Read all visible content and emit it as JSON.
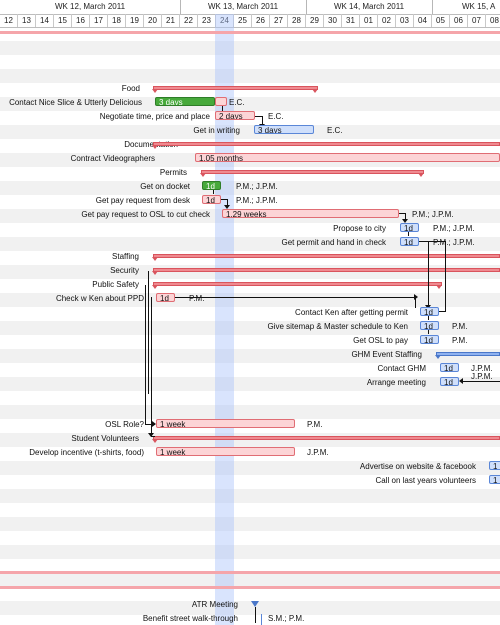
{
  "header": {
    "weeks": [
      "WK 12, March 2011",
      "WK 13, March 2011",
      "WK 14, March 2011",
      "WK 15, A"
    ],
    "days": [
      "12",
      "13",
      "14",
      "15",
      "16",
      "17",
      "18",
      "19",
      "20",
      "21",
      "22",
      "23",
      "24",
      "25",
      "26",
      "27",
      "28",
      "29",
      "30",
      "31",
      "01",
      "02",
      "03",
      "04",
      "05",
      "06",
      "07",
      "08"
    ]
  },
  "colors": {
    "task_pink": "#fcd4d6",
    "task_blue": "#cfdffb",
    "task_green": "#47a93b",
    "summary": "#ef8a90",
    "today": "#aac3fa"
  },
  "tasks": [
    {
      "label": "Food",
      "duration": "",
      "resource": ""
    },
    {
      "label": "Contact Nice Slice & Utterly Delicious",
      "duration": "3 days",
      "resource": "E.C."
    },
    {
      "label": "Negotiate time, price and place",
      "duration": "2 days",
      "resource": "E.C."
    },
    {
      "label": "Get in writing",
      "duration": "3 days",
      "resource": "E.C."
    },
    {
      "label": "Documentation",
      "duration": "",
      "resource": ""
    },
    {
      "label": "Contract Videographers",
      "duration": "1.05 months",
      "resource": ""
    },
    {
      "label": "Permits",
      "duration": "",
      "resource": ""
    },
    {
      "label": "Get on docket",
      "duration": "1d",
      "resource": "P.M.; J.P.M."
    },
    {
      "label": "Get pay request from desk",
      "duration": "1d",
      "resource": "P.M.; J.P.M."
    },
    {
      "label": "Get pay request to OSL to cut check",
      "duration": "1.29 weeks",
      "resource": "P.M.; J.P.M."
    },
    {
      "label": "Propose to city",
      "duration": "1d",
      "resource": "P.M.; J.P.M."
    },
    {
      "label": "Get permit and hand in check",
      "duration": "1d",
      "resource": "P.M.; J.P.M."
    },
    {
      "label": "Staffing",
      "duration": "",
      "resource": ""
    },
    {
      "label": "Security",
      "duration": "",
      "resource": ""
    },
    {
      "label": "Public Safety",
      "duration": "",
      "resource": ""
    },
    {
      "label": "Check w Ken about PPD",
      "duration": "1d",
      "resource": "P.M."
    },
    {
      "label": "Contact Ken after getting permit",
      "duration": "1d",
      "resource": ""
    },
    {
      "label": "Give sitemap & Master schedule to Ken",
      "duration": "1d",
      "resource": "P.M."
    },
    {
      "label": "Get OSL to pay",
      "duration": "1d",
      "resource": "P.M."
    },
    {
      "label": "GHM Event Staffing",
      "duration": "",
      "resource": ""
    },
    {
      "label": "Contact GHM",
      "duration": "1d",
      "resource": "J.P.M."
    },
    {
      "label": "Arrange meeting",
      "duration": "1d",
      "resource": "J.P.M."
    },
    {
      "label": "OSL Role?",
      "duration": "1 week",
      "resource": "P.M."
    },
    {
      "label": "Student Volunteers",
      "duration": "",
      "resource": ""
    },
    {
      "label": "Develop incentive (t-shirts, food)",
      "duration": "1 week",
      "resource": "J.P.M."
    },
    {
      "label": "Advertise on website & facebook",
      "duration": "1",
      "resource": ""
    },
    {
      "label": "Call on last years volunteers",
      "duration": "1",
      "resource": ""
    },
    {
      "label": "ATR Meeting",
      "duration": "",
      "resource": ""
    },
    {
      "label": "Benefit street walk-through",
      "duration": "",
      "resource": "S.M.; P.M."
    }
  ]
}
